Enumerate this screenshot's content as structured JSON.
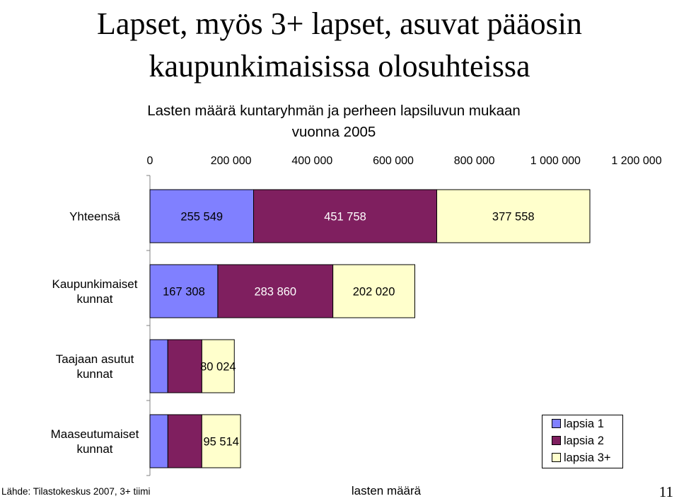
{
  "slide": {
    "title_line1": "Lapset, myös 3+ lapset, asuvat pääosin",
    "title_line2": "kaupunkimaisissa olosuhteissa",
    "source": "Lähde: Tilastokeskus 2007, 3+ tiimi",
    "page_number": "11"
  },
  "chart_data": {
    "type": "bar",
    "orientation": "horizontal",
    "stacked": true,
    "title_line1": "Lasten määrä kuntaryhmän ja perheen lapsiluvun mukaan",
    "title_line2": "vuonna 2005",
    "xlabel": "lasten määrä",
    "ylabel": "",
    "xlim": [
      0,
      1200000
    ],
    "xticks": [
      "0",
      "200 000",
      "400 000",
      "600 000",
      "800 000",
      "1 000 000",
      "1 200 000"
    ],
    "axis_position": "top",
    "grid": false,
    "legend_position": "bottom-right",
    "categories": [
      "Yhteensä",
      "Kaupunkimaiset kunnat",
      "Taajaan asutut kunnat",
      "Maaseutumaiset kunnat"
    ],
    "category_lines": [
      [
        "Yhteensä"
      ],
      [
        "Kaupunkimaiset",
        "kunnat"
      ],
      [
        "Taajaan asutut",
        "kunnat"
      ],
      [
        "Maaseutumaiset",
        "kunnat"
      ]
    ],
    "series": [
      {
        "name": "lapsia 1",
        "color": "#8080ff",
        "values": [
          255549,
          167308,
          44000,
          44200
        ],
        "labels": [
          "255 549",
          "167 308",
          "",
          ""
        ]
      },
      {
        "name": "lapsia 2",
        "color": "#7f1f5f",
        "values": [
          451758,
          283860,
          84000,
          83700
        ],
        "labels": [
          "451 758",
          "283 860",
          "",
          ""
        ]
      },
      {
        "name": "lapsia 3+",
        "color": "#ffffcc",
        "values": [
          377558,
          202020,
          80024,
          95514
        ],
        "labels": [
          "377 558",
          "202 020",
          "80 024",
          "95 514"
        ]
      }
    ]
  }
}
